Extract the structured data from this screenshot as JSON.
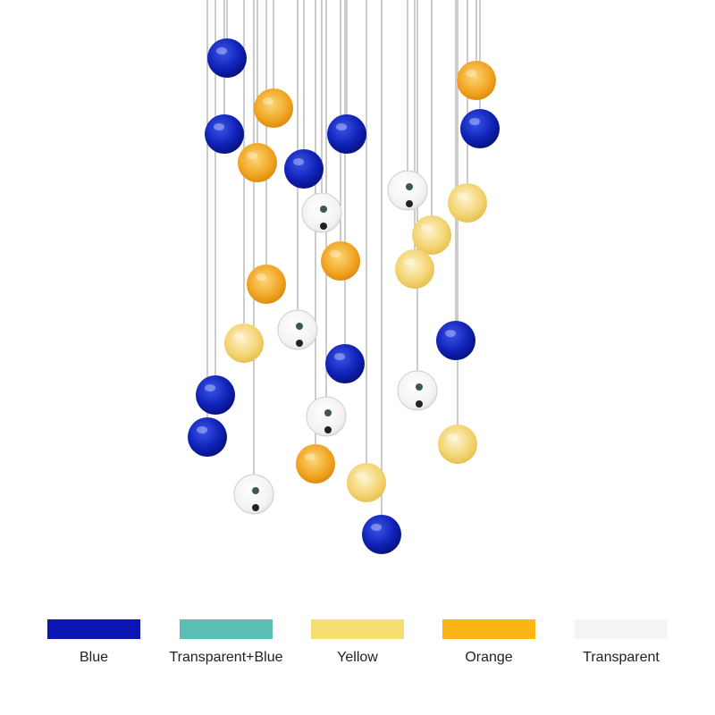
{
  "swatches": [
    {
      "label": "Blue",
      "color": "#0b16b3"
    },
    {
      "label": "Transparent+Blue",
      "color": "#5cbfb4"
    },
    {
      "label": "Yellow",
      "color": "#f6df72"
    },
    {
      "label": "Orange",
      "color": "#fbb616"
    },
    {
      "label": "Transparent",
      "color": "#f4f4f4"
    }
  ]
}
